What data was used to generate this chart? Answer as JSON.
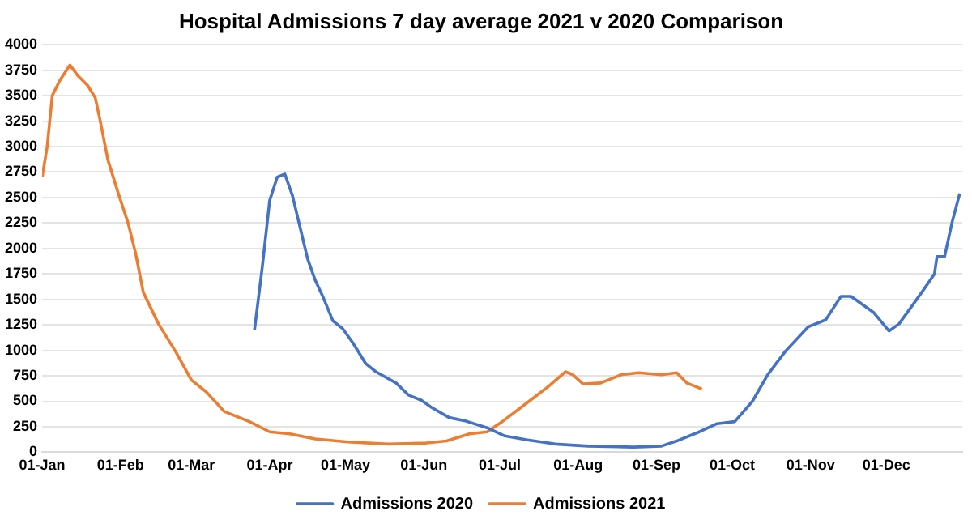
{
  "chart_data": {
    "type": "line",
    "title": "Hospital Admissions 7 day average 2021 v 2020 Comparison",
    "xlim": [
      "--01-01",
      "--12-31"
    ],
    "xticks": [
      {
        "value": "--01-01",
        "label": "01-Jan"
      },
      {
        "value": "--02-01",
        "label": "01-Feb"
      },
      {
        "value": "--03-01",
        "label": "01-Mar"
      },
      {
        "value": "--04-01",
        "label": "01-Apr"
      },
      {
        "value": "--05-01",
        "label": "01-May"
      },
      {
        "value": "--06-01",
        "label": "01-Jun"
      },
      {
        "value": "--07-01",
        "label": "01-Jul"
      },
      {
        "value": "--08-01",
        "label": "01-Aug"
      },
      {
        "value": "--09-01",
        "label": "01-Sep"
      },
      {
        "value": "--10-01",
        "label": "01-Oct"
      },
      {
        "value": "--11-01",
        "label": "01-Nov"
      },
      {
        "value": "--12-01",
        "label": "01-Dec"
      }
    ],
    "ylim": [
      0,
      4000
    ],
    "yticks": [
      0,
      250,
      500,
      750,
      1000,
      1250,
      1500,
      1750,
      2000,
      2250,
      2500,
      2750,
      3000,
      3250,
      3500,
      3750,
      4000
    ],
    "grid": "y",
    "legend": "bottom",
    "marker": "none",
    "line_style": "solid",
    "series": [
      {
        "name": "Admissions 2020",
        "color": "#4472c4",
        "x": [
          "--03-26",
          "--03-29",
          "--04-01",
          "--04-04",
          "--04-07",
          "--04-10",
          "--04-13",
          "--04-16",
          "--04-19",
          "--04-22",
          "--04-26",
          "--04-30",
          "--05-04",
          "--05-09",
          "--05-13",
          "--05-21",
          "--05-26",
          "--05-31",
          "--06-04",
          "--06-11",
          "--06-17",
          "--06-26",
          "--07-03",
          "--07-12",
          "--07-23",
          "--08-05",
          "--08-23",
          "--09-03",
          "--09-09",
          "--09-18",
          "--09-25",
          "--10-02",
          "--10-09",
          "--10-15",
          "--10-22",
          "--10-31",
          "--11-07",
          "--11-13",
          "--11-17",
          "--11-26",
          "--12-02",
          "--12-06",
          "--12-15",
          "--12-20",
          "--12-21",
          "--12-24",
          "--12-27",
          "--12-30"
        ],
        "values": [
          1200,
          1800,
          2470,
          2700,
          2730,
          2520,
          2210,
          1900,
          1690,
          1530,
          1290,
          1210,
          1070,
          870,
          790,
          680,
          560,
          510,
          440,
          340,
          310,
          240,
          160,
          120,
          80,
          60,
          50,
          60,
          110,
          200,
          280,
          300,
          500,
          760,
          990,
          1230,
          1300,
          1530,
          1530,
          1370,
          1190,
          1260,
          1570,
          1750,
          1920,
          1920,
          2260,
          2540
        ]
      },
      {
        "name": "Admissions 2021",
        "color": "#ed7d31",
        "x": [
          "--01-01",
          "--01-03",
          "--01-05",
          "--01-08",
          "--01-12",
          "--01-15",
          "--01-19",
          "--01-22",
          "--01-24",
          "--01-27",
          "--01-31",
          "--02-04",
          "--02-07",
          "--02-10",
          "--02-16",
          "--02-23",
          "--03-01",
          "--03-07",
          "--03-14",
          "--03-24",
          "--04-01",
          "--04-09",
          "--04-19",
          "--05-02",
          "--05-18",
          "--06-02",
          "--06-10",
          "--06-19",
          "--06-26",
          "--07-02",
          "--07-10",
          "--07-20",
          "--07-27",
          "--07-30",
          "--08-03",
          "--08-10",
          "--08-18",
          "--08-25",
          "--09-03",
          "--09-09",
          "--09-13",
          "--09-19"
        ],
        "values": [
          2700,
          3000,
          3500,
          3650,
          3800,
          3700,
          3600,
          3480,
          3250,
          2870,
          2550,
          2250,
          1950,
          1570,
          1260,
          980,
          710,
          590,
          400,
          300,
          200,
          180,
          130,
          100,
          80,
          90,
          110,
          180,
          200,
          300,
          450,
          640,
          790,
          760,
          670,
          680,
          760,
          780,
          760,
          780,
          680,
          620
        ]
      }
    ]
  }
}
